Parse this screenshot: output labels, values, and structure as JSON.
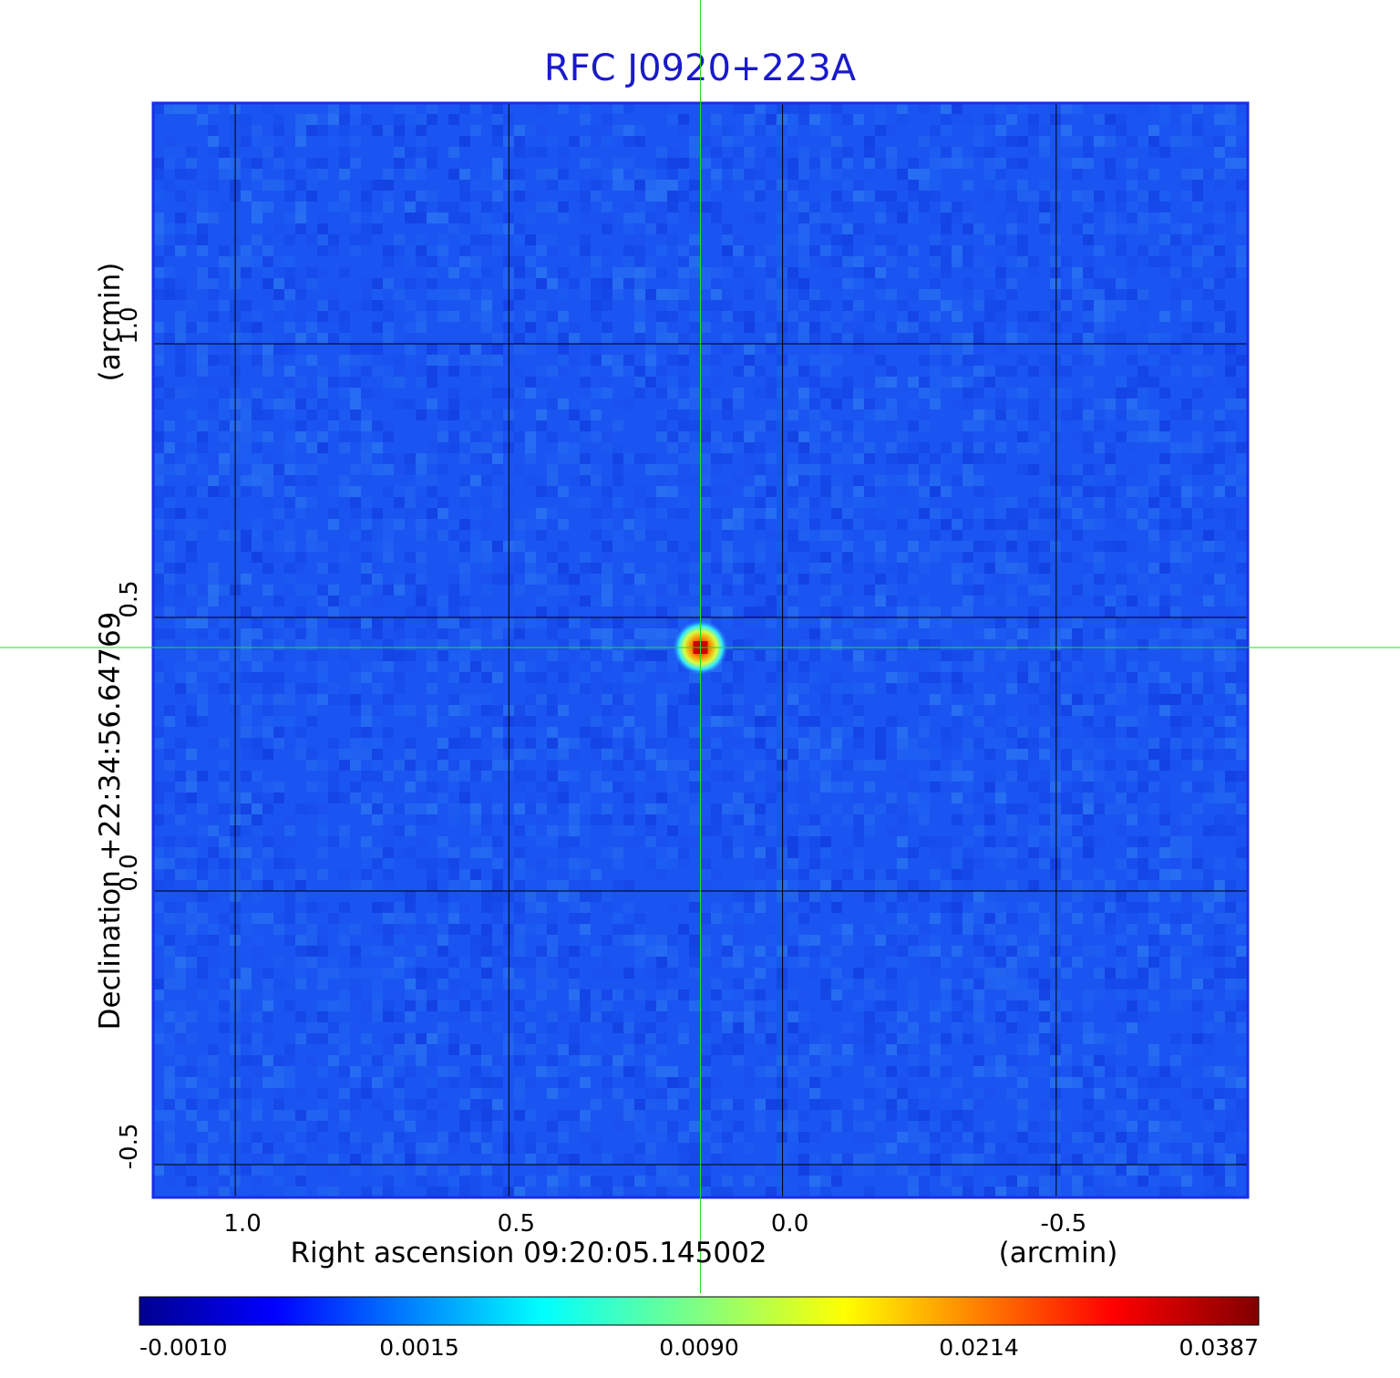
{
  "chart_data": {
    "type": "heatmap",
    "title": "RFC J0920+223A",
    "xlabel": "Right ascension  09:20:05.145002",
    "xunit": "(arcmin)",
    "ylabel": "Declination  +22:34:56.64769",
    "yunit": "(arcmin)",
    "x_ticks": [
      "1.0",
      "0.5",
      "0.0",
      "-0.5"
    ],
    "x_tick_values": [
      1.0,
      0.5,
      0.0,
      -0.5
    ],
    "y_ticks": [
      "1.0",
      "0.5",
      "0.0",
      "-0.5"
    ],
    "y_tick_values": [
      1.0,
      0.5,
      0.0,
      -0.5
    ],
    "xlim": [
      1.15,
      -0.85
    ],
    "ylim": [
      -0.56,
      1.44
    ],
    "grid": true,
    "crosshair": {
      "x": 0.15,
      "y": 0.445
    },
    "source": {
      "x": 0.15,
      "y": 0.445,
      "peak": 0.0387
    },
    "colorbar": {
      "ticks": [
        "-0.0010",
        "0.0015",
        "0.0090",
        "0.0214",
        "0.0387"
      ],
      "min": -0.001,
      "max": 0.0387,
      "colormap": "jet"
    },
    "colors": {
      "background": "#1a55f2",
      "frame": "#1a2ee6",
      "crosshair": "#22dd22",
      "grid": "#000000"
    }
  }
}
